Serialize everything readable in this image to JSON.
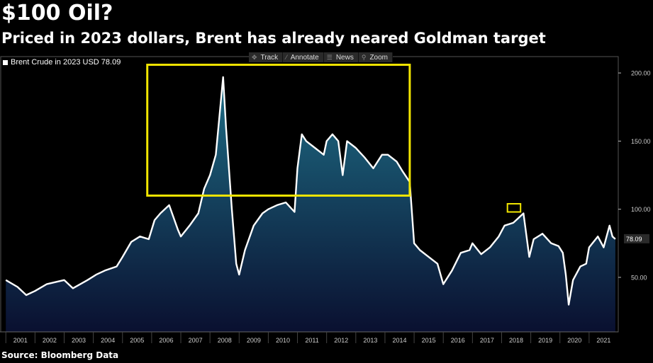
{
  "header": {
    "title": "$100 Oil?",
    "subtitle": "Priced in 2023 dollars, Brent has already neared Goldman target"
  },
  "footer": {
    "source": "Source: Bloomberg Data"
  },
  "toolbar": {
    "items": [
      {
        "label": "Track",
        "icon": "crosshair-icon"
      },
      {
        "label": "Annotate",
        "icon": "pencil-icon"
      },
      {
        "label": "News",
        "icon": "news-icon"
      },
      {
        "label": "Zoom",
        "icon": "magnifier-icon"
      }
    ]
  },
  "colors": {
    "line": "#ffffff",
    "fill_top": "#1e6e86",
    "fill_bottom": "#0a1030",
    "highlight_box": "#f2e600",
    "grid": "#3a3a3a"
  },
  "chart_data": {
    "type": "area",
    "series": [
      {
        "name": "Brent Crude in 2023 USD",
        "last_value_label": "78.09",
        "x": [
          2001.0,
          2001.4,
          2001.7,
          2002.0,
          2002.4,
          2002.8,
          2003.0,
          2003.3,
          2003.8,
          2004.1,
          2004.4,
          2004.8,
          2005.0,
          2005.3,
          2005.6,
          2005.9,
          2006.1,
          2006.3,
          2006.6,
          2006.9,
          2007.0,
          2007.3,
          2007.6,
          2007.8,
          2008.0,
          2008.2,
          2008.45,
          2008.55,
          2008.75,
          2008.9,
          2009.0,
          2009.2,
          2009.5,
          2009.8,
          2010.0,
          2010.3,
          2010.6,
          2010.9,
          2011.0,
          2011.15,
          2011.3,
          2011.6,
          2011.9,
          2012.0,
          2012.2,
          2012.4,
          2012.55,
          2012.7,
          2013.0,
          2013.3,
          2013.6,
          2013.9,
          2014.1,
          2014.4,
          2014.6,
          2014.85,
          2015.0,
          2015.2,
          2015.5,
          2015.8,
          2016.0,
          2016.3,
          2016.6,
          2016.9,
          2017.0,
          2017.3,
          2017.6,
          2017.9,
          2018.1,
          2018.4,
          2018.5,
          2018.75,
          2018.95,
          2019.1,
          2019.4,
          2019.7,
          2019.95,
          2020.1,
          2020.2,
          2020.3,
          2020.45,
          2020.7,
          2020.9,
          2021.0,
          2021.3,
          2021.5,
          2021.7,
          2021.8,
          2021.9
        ],
        "values": [
          48,
          43,
          37,
          40,
          45,
          47,
          48,
          42,
          48,
          52,
          55,
          58,
          65,
          76,
          80,
          78,
          92,
          97,
          103,
          85,
          80,
          88,
          97,
          115,
          125,
          140,
          197,
          160,
          100,
          60,
          52,
          70,
          88,
          97,
          100,
          103,
          105,
          98,
          130,
          155,
          150,
          145,
          140,
          150,
          155,
          150,
          125,
          150,
          145,
          138,
          130,
          140,
          140,
          135,
          128,
          120,
          75,
          70,
          65,
          60,
          45,
          55,
          68,
          70,
          75,
          67,
          72,
          80,
          88,
          90,
          92,
          97,
          65,
          78,
          82,
          75,
          73,
          68,
          52,
          30,
          48,
          58,
          60,
          72,
          80,
          72,
          88,
          80,
          78.09
        ]
      }
    ],
    "x_ticks": [
      "2001",
      "2002",
      "2003",
      "2004",
      "2005",
      "2006",
      "2007",
      "2008",
      "2009",
      "2010",
      "2011",
      "2012",
      "2013",
      "2014",
      "2015",
      "2016",
      "2017",
      "2018",
      "2019",
      "2020",
      "2021"
    ],
    "y_ticks": [
      "50.00",
      "100.00",
      "150.00",
      "200.00"
    ],
    "xlim": [
      2000.8,
      2022.0
    ],
    "ylim": [
      10,
      212
    ],
    "legend": {
      "label": "Brent Crude in 2023 USD 78.09",
      "placement": "top-left"
    },
    "annotations": [
      {
        "type": "highlight-box",
        "x_range": [
          2005.85,
          2014.85
        ],
        "y_range": [
          110,
          206
        ]
      },
      {
        "type": "highlight-box",
        "x_range": [
          2018.2,
          2018.65
        ],
        "y_range": [
          98,
          104
        ]
      }
    ],
    "grid": false
  }
}
